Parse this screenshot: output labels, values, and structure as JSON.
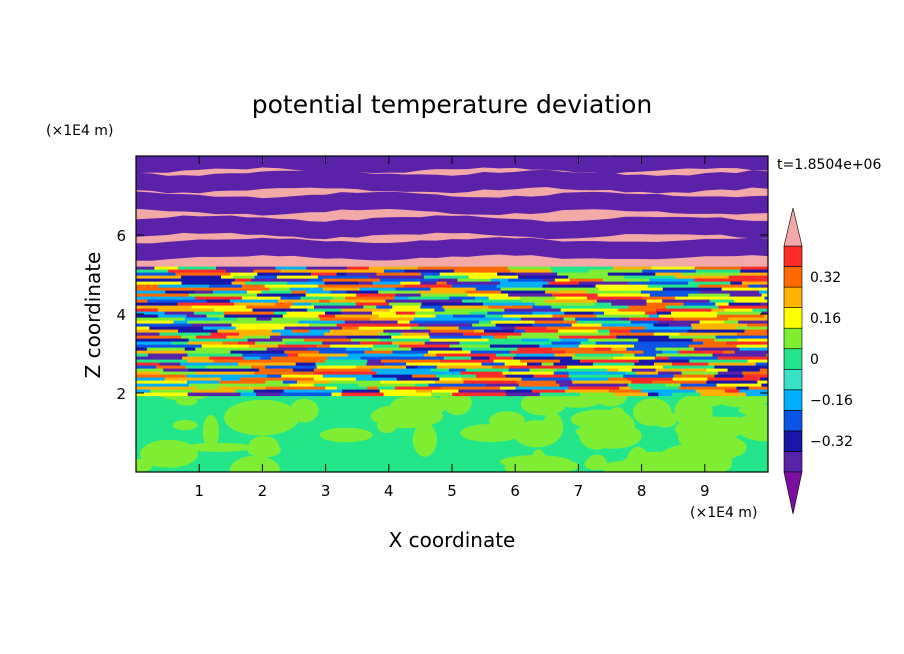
{
  "chart_data": {
    "type": "heatmap",
    "title": "potential temperature deviation",
    "time_label": "t=1.8504e+06",
    "xlabel": "X coordinate",
    "ylabel": "Z coordinate",
    "x_unit": "(×1E4 m)",
    "y_unit": "(×1E4 m)",
    "xlim": [
      0,
      10
    ],
    "ylim": [
      0,
      8
    ],
    "x_ticks": [
      "1",
      "2",
      "3",
      "4",
      "5",
      "6",
      "7",
      "8",
      "9"
    ],
    "y_ticks": [
      "2",
      "4",
      "6"
    ],
    "colorbar": {
      "levels": [
        -0.48,
        -0.4,
        -0.32,
        -0.24,
        -0.16,
        -0.08,
        0,
        0.08,
        0.16,
        0.24,
        0.32,
        0.4,
        0.48
      ],
      "tick_labels": [
        "0.32",
        "0.16",
        "0",
        "−0.16",
        "−0.32"
      ],
      "tick_values": [
        0.32,
        0.16,
        0,
        -0.16,
        -0.32
      ],
      "colors_low_to_high": [
        "#7a0fa0",
        "#5a22a8",
        "#1a16a8",
        "#0a54e6",
        "#00b0ff",
        "#38e0c8",
        "#23e68b",
        "#7fee33",
        "#ffff00",
        "#ffb300",
        "#ff6a00",
        "#ff2a2a",
        "#f4a8a8"
      ],
      "extend": "both"
    }
  }
}
